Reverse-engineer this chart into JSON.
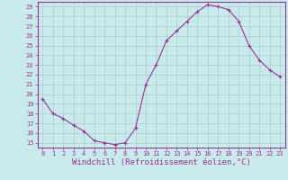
{
  "x": [
    0,
    1,
    2,
    3,
    4,
    5,
    6,
    7,
    8,
    9,
    10,
    11,
    12,
    13,
    14,
    15,
    16,
    17,
    18,
    19,
    20,
    21,
    22,
    23
  ],
  "y": [
    19.5,
    18.0,
    17.5,
    16.8,
    16.2,
    15.2,
    15.0,
    14.8,
    15.0,
    16.5,
    21.0,
    23.0,
    25.5,
    26.5,
    27.5,
    28.5,
    29.2,
    29.0,
    28.7,
    27.5,
    25.0,
    23.5,
    22.5,
    21.8
  ],
  "line_color": "#993399",
  "marker": "+",
  "marker_size": 3,
  "bg_color": "#c8eaea",
  "grid_color": "#aacccc",
  "xlabel": "Windchill (Refroidissement éolien,°C)",
  "xlim": [
    -0.5,
    23.5
  ],
  "ylim": [
    14.5,
    29.5
  ],
  "yticks": [
    15,
    16,
    17,
    18,
    19,
    20,
    21,
    22,
    23,
    24,
    25,
    26,
    27,
    28,
    29
  ],
  "xticks": [
    0,
    1,
    2,
    3,
    4,
    5,
    6,
    7,
    8,
    9,
    10,
    11,
    12,
    13,
    14,
    15,
    16,
    17,
    18,
    19,
    20,
    21,
    22,
    23
  ],
  "tick_label_fontsize": 5,
  "xlabel_fontsize": 6.5,
  "label_color": "#993399"
}
